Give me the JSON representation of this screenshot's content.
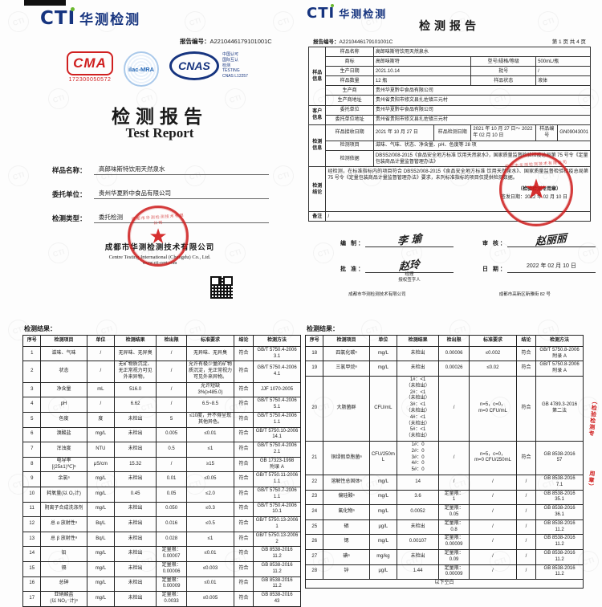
{
  "brand": {
    "cti_en": "CTI",
    "cti_cn": "华测检测",
    "watermark": "CTI"
  },
  "page_left": {
    "report_no_label": "报告编号：",
    "report_no": "A2210446179101001C",
    "cma": {
      "text": "CMA",
      "number": "172300050572"
    },
    "ilac": "ilac-MRA",
    "cnas": {
      "text": "CNAS",
      "side": "中国认可\n国际互认\n检测\nTESTING\nCNAS L12257"
    },
    "title_cn": "检测报告",
    "title_en": "Test Report",
    "fields": [
      {
        "label": "样品名称：",
        "value": "高郎味斯特饮用天然泉水"
      },
      {
        "label": "委托单位：",
        "value": "贵州华夏黔中食品有限公司"
      },
      {
        "label": "检测类型：",
        "value": "委托检测"
      }
    ],
    "company_cn": "成都市华测检测技术有限公司",
    "company_en": "Centre Testing International (Chengdu) Co., Ltd.",
    "website": "www.cti-cert.com"
  },
  "page_right": {
    "title": "检测报告",
    "report_no_label": "报告编号：",
    "report_no": "A2210446179101001C",
    "page_no": "第 1 页 共 4 页",
    "info": {
      "group_sample": "样品信息",
      "group_client": "客户信息",
      "group_test": "检测信息",
      "group_conclusion": "检测结论",
      "group_remark": "备注",
      "name_label": "样品名称",
      "name": "高郎味斯特饮用天然泉水",
      "brand_label": "商标",
      "brand": "高郎味斯特",
      "model_label": "型号/规格/等级",
      "model": "500mL/瓶",
      "date_label": "生产日期",
      "date": "2021.10.14",
      "batch_label": "批号",
      "batch": "/",
      "qty_label": "样品数量",
      "qty": "12 瓶",
      "state_label": "样品状态",
      "state": "液体",
      "producer_label": "生产商",
      "producer": "贵州华夏黔中食品有限公司",
      "producer_addr_label": "生产商地址",
      "producer_addr": "贵州省贵阳市修文县扎佐镇三元村",
      "client_label": "委托单位",
      "client": "贵州华夏黔中食品有限公司",
      "client_addr_label": "委托单位地址",
      "client_addr": "贵州省贵阳市修文县扎佐镇三元村",
      "recv_label": "样品接收日期",
      "recv": "2021 年 10 月 27 日",
      "range_label": "样品检测日期",
      "range": "2021 年 10 月 27 日～ 2022 年 02 月 10 日",
      "sample_no_label": "样品编号",
      "sample_no": "GN09043001",
      "items_label": "检测项目",
      "items": "滋味、气味、状态、净含量、pH、色度等 28 项",
      "basis_label": "检测依据",
      "basis": "DBS52/008-2015《食品安全地方标准 饮用天然泉水》，国家质量监督检验检疫总局第 75 号令《定量包装商品计量监督管理办法》",
      "conclusion": "经检测，在标准指标内的项目符合 DBS52/008-2015《食品安全地方标准 饮用天然泉水》、国家质量监督检验检疫总局第 75 号令《定量包装商品计量监督管理办法》要求，未列标准指标的项目仅提供检测数据。",
      "stamp_note": "（检验检测专用章）",
      "issue_date": "签发日期：2022 年 02 月 10 日",
      "remark": "/"
    },
    "sign": {
      "bianzhi_label": "编  制：",
      "bianzhi": "李 瑜",
      "shenhe_label": "审  核：",
      "shenhe": "赵丽丽",
      "pizhun_label": "批  准：",
      "pizhun": "赵玲",
      "role1": "经理",
      "role2": "授权签字人",
      "date_label": "日  期：",
      "date": "2022 年 02 月 10 日"
    },
    "footer_company": "成都市华测检测技术有限公司",
    "footer_address": "成都市高新区新雅街 82 号"
  },
  "results_title": "检测结果：",
  "results_headers": [
    "序号",
    "检测项目",
    "单位",
    "检测结果",
    "检出限",
    "标准要求",
    "结论",
    "检测方法"
  ],
  "left_results": {
    "rows": [
      [
        "1",
        "滋味、气味",
        "/",
        "无异味、无异臭",
        "/",
        "无异味、无异臭",
        "符合",
        "GB/T 5750.4-2006\n3.1"
      ],
      [
        "2",
        "状态",
        "/",
        "无矿物质沉淀、无正常视力可见外来异物。",
        "/",
        "允许有极少量的矿物质沉淀，无正常视力可见外来异物。",
        "符合",
        "GB/T 5750.4-2006\n4.1"
      ],
      [
        "3",
        "净含量",
        "mL",
        "516.0",
        "/",
        "允许短缺\n3%(≥485.0)",
        "符合",
        "JJF 1070-2005"
      ],
      [
        "4",
        "pH",
        "/",
        "6.62",
        "/",
        "6.5~8.5",
        "符合",
        "GB/T 5750.4-2006\n5.1"
      ],
      [
        "5",
        "色度",
        "度",
        "未检出",
        "5",
        "≤10度，并不得呈现其他异色。",
        "符合",
        "GB/T 5750.4-2006\n1.1"
      ],
      [
        "6",
        "溴酸盐",
        "mg/L",
        "未检出",
        "0.005",
        "≤0.01",
        "符合",
        "GB/T 5750.10-2006\n14.1"
      ],
      [
        "7",
        "浑浊度",
        "NTU",
        "未检出",
        "0.5",
        "≤1",
        "符合",
        "GB/T 5750.4-2006\n2.1"
      ],
      [
        "8",
        "电导率\n[(25±1)℃]ᵃ",
        "μS/cm",
        "15.32",
        "/",
        "≥15",
        "符合",
        "GB 17323-1998\n附录 A"
      ],
      [
        "9",
        "余氯ᵃ",
        "mg/L",
        "未检出",
        "0.01",
        "≤0.05",
        "符合",
        "GB/T 5750.11-2006\n1.1"
      ],
      [
        "10",
        "耗氧量(以 O₂计)",
        "mg/L",
        "0.45",
        "0.05",
        "≤2.0",
        "符合",
        "GB/T 5750.7-2006\n1.1"
      ],
      [
        "11",
        "阴离子合成洗涤剂",
        "mg/L",
        "未检出",
        "0.050",
        "≤0.3",
        "符合",
        "GB/T 5750.4-2006\n10.1"
      ],
      [
        "12",
        "总 α 放射性ᵃ",
        "Bq/L",
        "未检出",
        "0.016",
        "≤0.5",
        "符合",
        "GB/T 5750.13-2006\n1"
      ],
      [
        "13",
        "总 β 放射性ᵃ",
        "Bq/L",
        "未检出",
        "0.028",
        "≤1",
        "符合",
        "GB/T 5750.13-2006\n2"
      ],
      [
        "14",
        "铅",
        "mg/L",
        "未检出",
        "定量限：\n0.00007",
        "≤0.01",
        "符合",
        "GB 8538-2016\n11.2"
      ],
      [
        "15",
        "镉",
        "mg/L",
        "未检出",
        "定量限：\n0.00006",
        "≤0.003",
        "符合",
        "GB 8538-2016\n11.2"
      ],
      [
        "16",
        "总砷",
        "mg/L",
        "未检出",
        "定量限：\n0.00009",
        "≤0.01",
        "符合",
        "GB 8538-2016\n11.2"
      ],
      [
        "17",
        "亚硝酸盐\n(以 NO₂⁻计)ᵃ",
        "mg/L",
        "未检出",
        "定量限：\n0.0033",
        "≤0.005",
        "符合",
        "GB 8538-2016\n43"
      ]
    ]
  },
  "right_results": {
    "rows": [
      [
        "18",
        "四氯化碳ᵃ",
        "mg/L",
        "未检出",
        "0.00006",
        "≤0.002",
        "符合",
        "GB/T 5750.8-2006\n附录 A"
      ],
      [
        "19",
        "三氯甲烷ᵃ",
        "mg/L",
        "未检出",
        "0.00026",
        "≤0.02",
        "符合",
        "GB/T 5750.8-2006\n附录 A"
      ],
      [
        "20",
        "大肠菌群",
        "CFU/mL",
        "1#：<1\n（未检出）\n2#：<1\n（未检出）\n3#：<1\n（未检出）\n4#：<1\n（未检出）\n5#：<1\n（未检出）",
        "/",
        "n=5，c=0，\nm=0 CFU/mL",
        "符合",
        "GB 4789.3-2016\n第二法"
      ],
      [
        "21",
        "铜绿假单胞菌ᵃ",
        "CFU/250mL",
        "1#：0\n2#：0\n3#：0\n4#：0\n5#：0",
        "/",
        "n=5，c=0，\nm=0 CFU/250mL",
        "符合",
        "GB 8538-2016\n57"
      ],
      [
        "22",
        "溶解性总固体ᵃ",
        "mg/L",
        "14",
        "/",
        "/",
        "/",
        "GB 8538-2016\n7.1"
      ],
      [
        "23",
        "偏硅酸ᵃ",
        "mg/L",
        "3.6",
        "定量限：\n1",
        "/",
        "/",
        "GB 8538-2016\n35.1"
      ],
      [
        "24",
        "氟化物ᵃ",
        "mg/L",
        "0.0052",
        "定量限：\n0.05",
        "/",
        "/",
        "GB 8538-2016\n36.1"
      ],
      [
        "25",
        "硒",
        "μg/L",
        "未检出",
        "定量限：\n0.8",
        "/",
        "/",
        "GB 8538-2016\n11.2"
      ],
      [
        "26",
        "锶",
        "mg/L",
        "0.00107",
        "定量限：\n0.00009",
        "/",
        "/",
        "GB 8538-2016\n11.2"
      ],
      [
        "27",
        "碘ᵃ",
        "mg/kg",
        "未检出",
        "定量限：\n0.09",
        "/",
        "/",
        "GB 8538-2016\n11.2"
      ],
      [
        "28",
        "锌",
        "μg/L",
        "1.44",
        "定量限：\n0.00009",
        "/",
        "/",
        "GB 8538-2016\n11.2"
      ]
    ],
    "footer": "以下空白"
  },
  "margin_notes": {
    "n1": "（检验检测专",
    "n2": "用章）"
  }
}
